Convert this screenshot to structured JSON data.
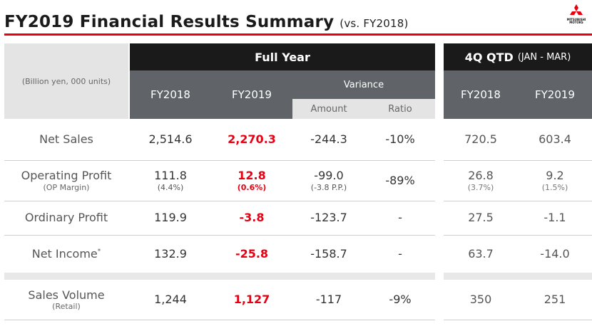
{
  "header": {
    "title": "FY2019 Financial Results Summary",
    "subtitle": "(vs. FY2018)",
    "logo_text_1": "MITSUBISHI",
    "logo_text_2": "MOTORS",
    "accent_color": "#e60012"
  },
  "table": {
    "unit_label": "(Billion yen, 000 units)",
    "full_year_label": "Full Year",
    "qtd_label": "4Q QTD",
    "qtd_period": "(JAN - MAR)",
    "col_fy2018": "FY2018",
    "col_fy2019": "FY2019",
    "variance_label": "Variance",
    "amount_label": "Amount",
    "ratio_label": "Ratio",
    "qtd_col_fy2018": "FY2018",
    "qtd_col_fy2019": "FY2019",
    "rows": {
      "net_sales": {
        "label": "Net Sales",
        "fy2018": "2,514.6",
        "fy2019": "2,270.3",
        "amount": "-244.3",
        "ratio": "-10%",
        "q2018": "720.5",
        "q2019": "603.4"
      },
      "operating_profit": {
        "label": "Operating Profit",
        "sublabel": "(OP Margin)",
        "fy2018": "111.8",
        "fy2018_sub": "(4.4%)",
        "fy2019": "12.8",
        "fy2019_sub": "(0.6%)",
        "amount": "-99.0",
        "amount_sub": "(-3.8 P.P.)",
        "ratio": "-89%",
        "q2018": "26.8",
        "q2018_sub": "(3.7%)",
        "q2019": "9.2",
        "q2019_sub": "(1.5%)"
      },
      "ordinary_profit": {
        "label": "Ordinary Profit",
        "fy2018": "119.9",
        "fy2019": "-3.8",
        "amount": "-123.7",
        "ratio": "-",
        "q2018": "27.5",
        "q2019": "-1.1"
      },
      "net_income": {
        "label": "Net Income",
        "label_mark": "*",
        "fy2018": "132.9",
        "fy2019": "-25.8",
        "amount": "-158.7",
        "ratio": "-",
        "q2018": "63.7",
        "q2019": "-14.0"
      },
      "sales_volume": {
        "label": "Sales Volume",
        "sublabel": "(Retail)",
        "fy2018": "1,244",
        "fy2019": "1,127",
        "amount": "-117",
        "ratio": "-9%",
        "q2018": "350",
        "q2019": "251"
      }
    }
  }
}
